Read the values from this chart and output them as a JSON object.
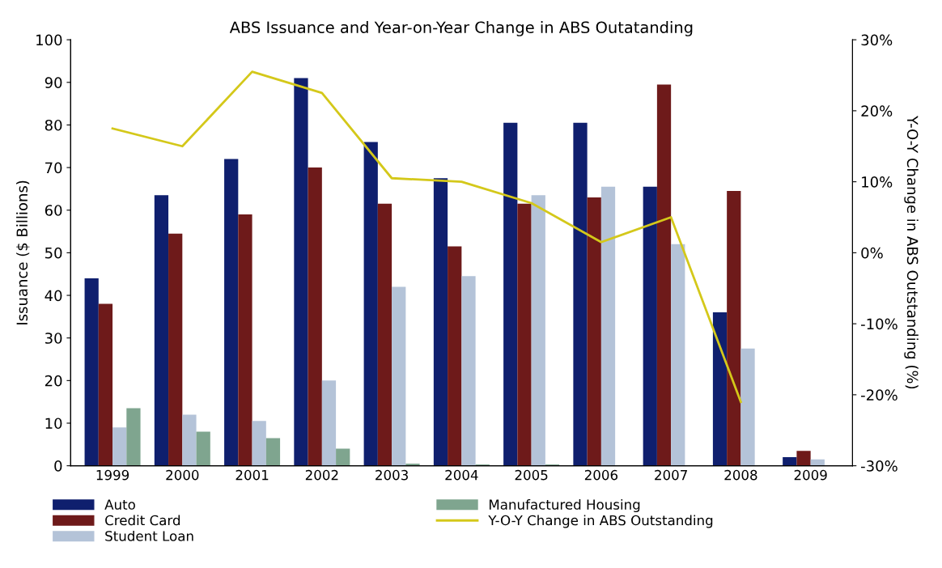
{
  "chart_data": {
    "type": "bar",
    "title": "ABS Issuance and Year-on-Year Change in ABS Outatanding",
    "ylabel": "Issuance ($ Billions)",
    "y2label": "Y-O-Y Change in ABS Outstanding (%)",
    "categories": [
      "1999",
      "2000",
      "2001",
      "2002",
      "2003",
      "2004",
      "2005",
      "2006",
      "2007",
      "2008",
      "2009"
    ],
    "series": [
      {
        "name": "Auto",
        "color": "#0f1f6e",
        "values": [
          44,
          63.5,
          72,
          91,
          76,
          67.5,
          80.5,
          80.5,
          65.5,
          36,
          2
        ]
      },
      {
        "name": "Credit Card",
        "color": "#6e1a1a",
        "values": [
          38,
          54.5,
          59,
          70,
          61.5,
          51.5,
          61.5,
          63,
          89.5,
          64.5,
          3.5
        ]
      },
      {
        "name": "Student Loan",
        "color": "#b4c3d8",
        "values": [
          9,
          12,
          10.5,
          20,
          42,
          44.5,
          63.5,
          65.5,
          52,
          27.5,
          1.5
        ]
      },
      {
        "name": "Manufactured Housing",
        "color": "#7fa58f",
        "values": [
          13.5,
          8,
          6.5,
          4,
          0.5,
          0.3,
          0.3,
          null,
          0,
          0,
          0
        ]
      },
      {
        "name": "Y-O-Y Change in ABS Outstanding",
        "type": "line",
        "axis": "y2",
        "color": "#d4c81a",
        "values": [
          17.5,
          15,
          25.5,
          22.5,
          10.5,
          10,
          7,
          1.5,
          5,
          -21,
          null
        ]
      }
    ],
    "ylim": [
      0,
      100
    ],
    "yticks": [
      0,
      10,
      20,
      30,
      40,
      50,
      60,
      70,
      80,
      90,
      100
    ],
    "y2lim": [
      -30,
      30
    ],
    "y2ticks": [
      {
        "value": -30,
        "label": "-30%"
      },
      {
        "value": -20,
        "label": "-20%"
      },
      {
        "value": -10,
        "label": "-10%"
      },
      {
        "value": 0,
        "label": "0%"
      },
      {
        "value": 10,
        "label": "10%"
      },
      {
        "value": 20,
        "label": "20%"
      },
      {
        "value": 30,
        "label": "30%"
      }
    ],
    "grid": false,
    "legend": "bottom"
  }
}
